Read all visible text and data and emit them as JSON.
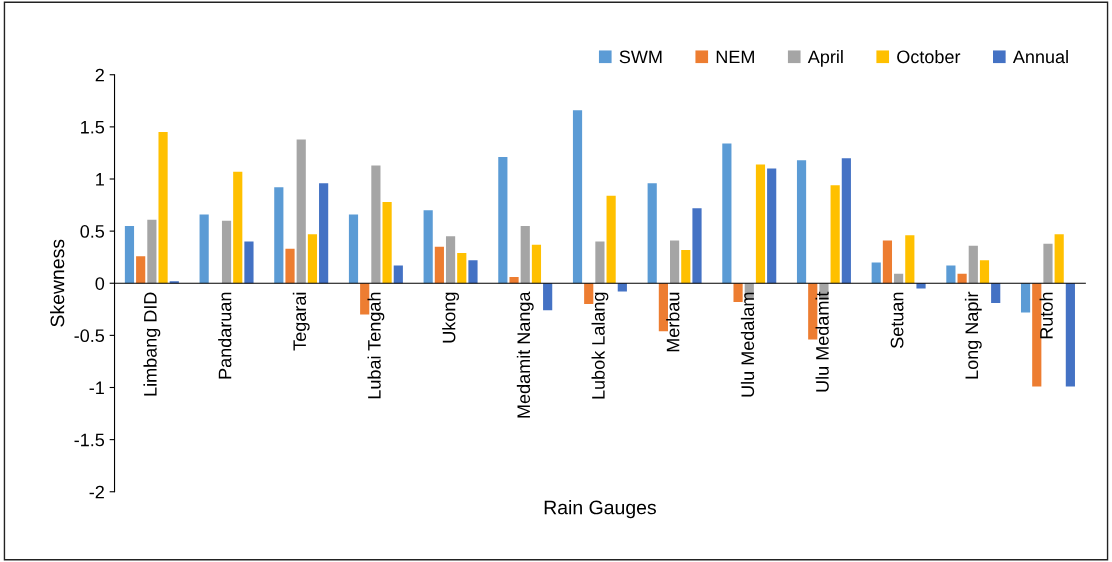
{
  "chart_data": {
    "type": "bar",
    "xlabel": "Rain Gauges",
    "ylabel": "Skewness",
    "categories": [
      "Limbang DID",
      "Pandaruan",
      "Tegarai",
      "Lubai Tengah",
      "Ukong",
      "Medamit Nanga",
      "Lubok Lalang",
      "Merbau",
      "Ulu Medalam",
      "Ulu Medamit",
      "Setuan",
      "Long Napir",
      "Rutoh"
    ],
    "series": [
      {
        "name": "SWM",
        "color": "#5b9bd5",
        "values": [
          0.55,
          0.66,
          0.92,
          0.66,
          0.7,
          1.21,
          1.66,
          0.96,
          1.34,
          1.18,
          0.2,
          0.17,
          -0.28
        ]
      },
      {
        "name": "NEM",
        "color": "#ed7d31",
        "values": [
          0.26,
          0.0,
          0.33,
          -0.3,
          0.35,
          0.06,
          -0.2,
          -0.46,
          -0.18,
          -0.54,
          0.41,
          0.09,
          -0.99
        ]
      },
      {
        "name": "April",
        "color": "#a5a5a5",
        "values": [
          0.61,
          0.6,
          1.38,
          1.13,
          0.45,
          0.55,
          0.4,
          0.41,
          -0.15,
          -0.15,
          0.09,
          0.36,
          0.38
        ]
      },
      {
        "name": "October",
        "color": "#ffc000",
        "values": [
          1.45,
          1.07,
          0.47,
          0.78,
          0.29,
          0.37,
          0.84,
          0.32,
          1.14,
          0.94,
          0.46,
          0.22,
          0.47
        ]
      },
      {
        "name": "Annual",
        "color": "#4472c4",
        "values": [
          0.02,
          0.4,
          0.96,
          0.17,
          0.22,
          -0.26,
          -0.08,
          0.72,
          1.1,
          1.2,
          -0.05,
          -0.19,
          -0.99
        ]
      }
    ],
    "ylim": [
      -2,
      2
    ],
    "yticks": [
      -2,
      -1.5,
      -1,
      -0.5,
      0,
      0.5,
      1,
      1.5,
      2
    ],
    "grid": false,
    "legend": "top right"
  }
}
